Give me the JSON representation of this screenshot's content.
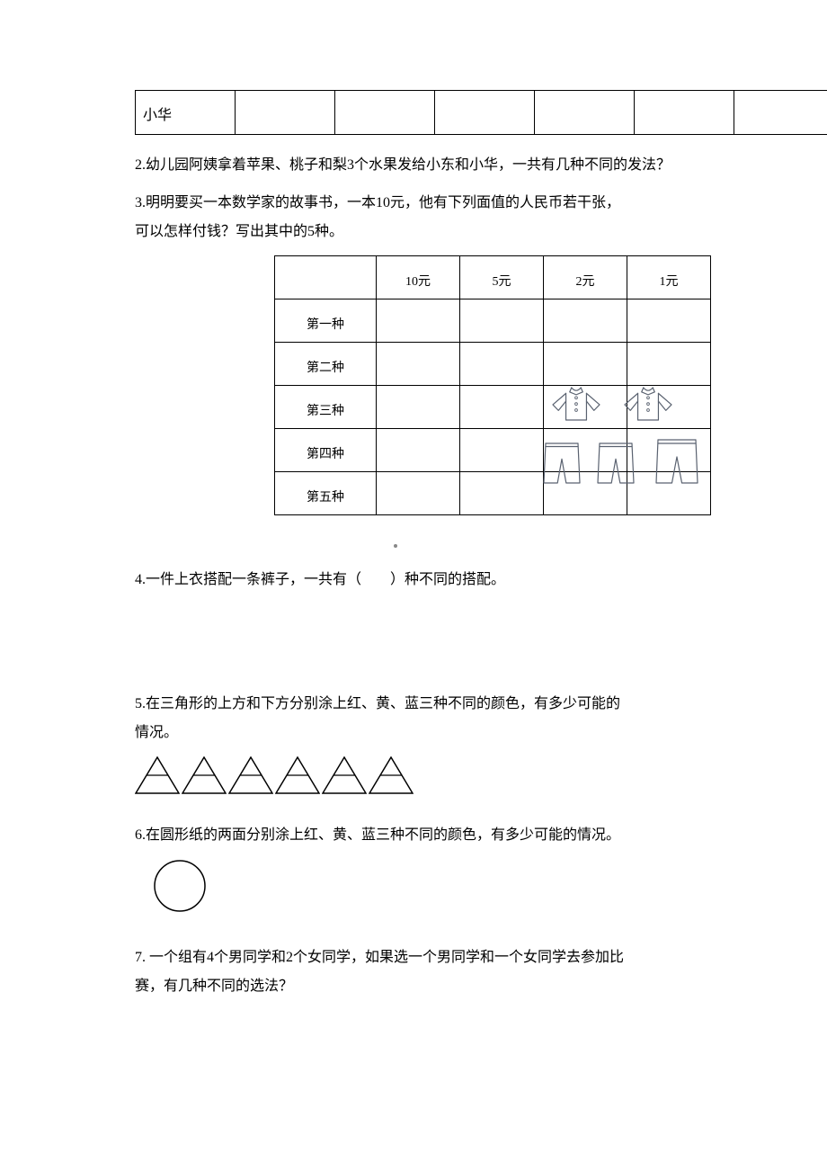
{
  "table1": {
    "rowLabel": "小华",
    "cols": 7
  },
  "q2": "2.幼儿园阿姨拿着苹果、桃子和梨3个水果发给小东和小华，一共有几种不同的发法？",
  "q3_l1": "3.明明要买一本数学家的故事书，一本10元，他有下列面值的人民币若干张，",
  "q3_l2": "可以怎样付钱？写出其中的5种。",
  "table2": {
    "headers": [
      "",
      "10元",
      "5元",
      "2元",
      "1元"
    ],
    "rows": [
      "第一种",
      "第二种",
      "第三种",
      "第四种",
      "第五种"
    ]
  },
  "q4": "4.一件上衣搭配一条裤子，一共有（　　）种不同的搭配。",
  "q5_l1": "5.在三角形的上方和下方分别涂上红、黄、蓝三种不同的颜色，有多少可能的",
  "q5_l2": "情况。",
  "triangles": {
    "count": 6,
    "height": 40,
    "base": 48,
    "stroke": "#000000"
  },
  "q6": "6.在圆形纸的两面分别涂上红、黄、蓝三种不同的颜色，有多少可能的情况。",
  "circle": {
    "r": 28,
    "stroke": "#000000"
  },
  "q7_l1": "7. 一个组有4个男同学和2个女同学，如果选一个男同学和一个女同学去参加比",
  "q7_l2": "赛，有几种不同的选法？",
  "clothing": {
    "stroke": "#5a6270",
    "shirt_w": 52,
    "shirt_h": 38,
    "pants_w": 40,
    "pants_h": 46
  }
}
